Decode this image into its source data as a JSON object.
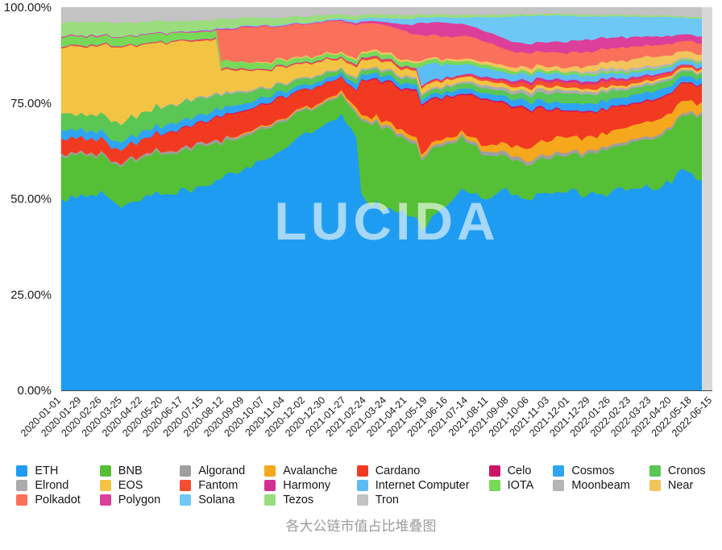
{
  "page": {
    "title": "各大公链市值占比堆叠图",
    "watermark": "LUCIDA"
  },
  "chart_data": {
    "type": "area",
    "stacked": true,
    "normalized_percent": true,
    "title": "各大公链市值占比堆叠图",
    "watermark": "LUCIDA",
    "xlabel": "",
    "ylabel": "",
    "ylim": [
      0,
      100
    ],
    "grid": false,
    "legend_position": "bottom",
    "legend_columns": 8,
    "y_ticks": [
      "100.00%",
      "75.00%",
      "50.00%",
      "25.00%",
      "0.00%"
    ],
    "x": [
      "2020-01-01",
      "2020-01-29",
      "2020-02-26",
      "2020-03-25",
      "2020-04-22",
      "2020-05-20",
      "2020-06-17",
      "2020-07-15",
      "2020-08-12",
      "2020-09-09",
      "2020-10-07",
      "2020-11-04",
      "2020-12-02",
      "2020-12-30",
      "2021-01-27",
      "2021-02-24",
      "2021-03-24",
      "2021-04-21",
      "2021-05-19",
      "2021-06-16",
      "2021-07-14",
      "2021-08-11",
      "2021-09-08",
      "2021-10-06",
      "2021-11-03",
      "2021-12-01",
      "2021-12-29",
      "2022-01-26",
      "2022-02-23",
      "2022-03-23",
      "2022-04-20",
      "2022-05-18",
      "2022-06-15"
    ],
    "series": [
      {
        "name": "ETH",
        "color": "#1E9CF1",
        "values": [
          52,
          56,
          57,
          53,
          56,
          58,
          60,
          61,
          63,
          65,
          66,
          68,
          71,
          74,
          78,
          56,
          52,
          50,
          47,
          52,
          58,
          56,
          60,
          60,
          61,
          63,
          61,
          60,
          61,
          61,
          61,
          63,
          54
        ]
      },
      {
        "name": "BNB",
        "color": "#55C035",
        "values": [
          12,
          11,
          11,
          12,
          12,
          12,
          12,
          12,
          10,
          10,
          9,
          8,
          7,
          6,
          5.5,
          21,
          23,
          22,
          20,
          18,
          15,
          13,
          10,
          11,
          11,
          11,
          12,
          13,
          13,
          14,
          15,
          15,
          17
        ]
      },
      {
        "name": "Algorand",
        "color": "#9E9E9E",
        "values": [
          0.6,
          0.6,
          0.6,
          0.6,
          0.7,
          0.7,
          0.8,
          0.8,
          0.8,
          0.7,
          0.6,
          0.6,
          0.5,
          0.5,
          0.5,
          0.7,
          0.8,
          0.8,
          0.8,
          0.8,
          0.8,
          1,
          1.3,
          1.2,
          1.1,
          1,
          1,
          0.9,
          0.8,
          0.8,
          0.8,
          0.7,
          0.6
        ]
      },
      {
        "name": "Avalanche",
        "color": "#F5A81C",
        "values": [
          0,
          0,
          0,
          0,
          0,
          0,
          0,
          0,
          0,
          0.3,
          0.3,
          0.3,
          0.4,
          0.4,
          0.6,
          1,
          1.2,
          1.2,
          1,
          1,
          1,
          1.5,
          2.5,
          3.5,
          4.5,
          5,
          4.5,
          4,
          4,
          4.5,
          4.5,
          3.5,
          2.5
        ]
      },
      {
        "name": "Cardano",
        "color": "#F23A21",
        "values": [
          4,
          4,
          4,
          4,
          4.5,
          5,
          6,
          6,
          7,
          6.5,
          6,
          6,
          5,
          4.5,
          4,
          10,
          11,
          11,
          13,
          12,
          11,
          13,
          12,
          12,
          10,
          8,
          8,
          7,
          7,
          6,
          6,
          5,
          4.5
        ]
      },
      {
        "name": "Celo",
        "color": "#CC1566",
        "values": [
          0,
          0,
          0,
          0,
          0,
          0.2,
          0.3,
          0.3,
          0.3,
          0.3,
          0.3,
          0.3,
          0.2,
          0.2,
          0.2,
          0.3,
          0.4,
          0.5,
          0.5,
          0.4,
          0.4,
          0.5,
          0.5,
          0.5,
          0.5,
          0.4,
          0.4,
          0.4,
          0.4,
          0.4,
          0.4,
          0.3,
          0.3
        ]
      },
      {
        "name": "Cosmos",
        "color": "#2FA4F5",
        "values": [
          2.5,
          2.2,
          2.2,
          2.2,
          2.2,
          2.2,
          2.2,
          2.2,
          2.2,
          2,
          1.8,
          1.5,
          1.2,
          1.2,
          1.2,
          1.5,
          1.5,
          1.5,
          1.2,
          1.2,
          1.5,
          1.5,
          1.8,
          2.2,
          2.2,
          2,
          2.2,
          2.5,
          2.2,
          2.5,
          2.3,
          1.8,
          1.5
        ]
      },
      {
        "name": "Cronos",
        "color": "#5AC653",
        "values": [
          4.5,
          4.5,
          5,
          5.5,
          5.5,
          5.5,
          5.5,
          5,
          4,
          3.5,
          2.5,
          2,
          1.8,
          1.5,
          1,
          1.2,
          1.2,
          1.5,
          1.2,
          1.2,
          1.5,
          1.5,
          1.5,
          1.8,
          2.5,
          3,
          3,
          2.5,
          2.2,
          2,
          2,
          1.5,
          1.2
        ]
      },
      {
        "name": "Elrond",
        "color": "#ABABAB",
        "values": [
          0,
          0,
          0,
          0,
          0,
          0.2,
          0.3,
          0.4,
          0.5,
          0.5,
          0.4,
          0.4,
          0.4,
          0.4,
          0.4,
          0.5,
          0.6,
          0.6,
          0.5,
          0.5,
          0.6,
          0.8,
          1,
          1,
          1.2,
          1,
          0.9,
          0.8,
          0.7,
          0.7,
          0.7,
          0.5,
          0.4
        ]
      },
      {
        "name": "EOS",
        "color": "#F3C444",
        "values": [
          18,
          19,
          20,
          22,
          20,
          19,
          18,
          16,
          7,
          6,
          5,
          4.5,
          4,
          3.5,
          2.8,
          2.5,
          2.2,
          2,
          1.8,
          1.5,
          1.4,
          1.3,
          1.2,
          1.1,
          1,
          0.9,
          0.8,
          0.8,
          0.7,
          0.7,
          0.6,
          0.5,
          0.5
        ]
      },
      {
        "name": "Fantom",
        "color": "#F54D30",
        "values": [
          0.2,
          0.2,
          0.2,
          0.2,
          0.2,
          0.2,
          0.2,
          0.3,
          0.3,
          0.3,
          0.2,
          0.2,
          0.2,
          0.2,
          0.3,
          0.4,
          0.5,
          0.5,
          0.4,
          0.4,
          0.4,
          0.6,
          0.8,
          1.3,
          1.5,
          1.5,
          1.5,
          1.8,
          1.5,
          1.2,
          1,
          0.6,
          0.4
        ]
      },
      {
        "name": "Harmony",
        "color": "#D43090",
        "values": [
          0.15,
          0.15,
          0.15,
          0.15,
          0.15,
          0.15,
          0.15,
          0.2,
          0.2,
          0.2,
          0.2,
          0.2,
          0.2,
          0.2,
          0.2,
          0.3,
          0.3,
          0.3,
          0.3,
          0.3,
          0.3,
          0.5,
          0.6,
          0.8,
          0.8,
          0.8,
          0.8,
          0.8,
          0.7,
          0.6,
          0.5,
          0.3,
          0.2
        ]
      },
      {
        "name": "Internet Computer",
        "color": "#5BBDF3",
        "values": [
          0,
          0,
          0,
          0,
          0,
          0,
          0,
          0,
          0,
          0,
          0,
          0,
          0,
          0,
          0,
          0,
          0,
          0,
          6,
          4,
          3,
          2.5,
          2.2,
          2,
          1.8,
          1.8,
          1.8,
          1.6,
          1.5,
          1.4,
          1.3,
          1.2,
          1.1
        ]
      },
      {
        "name": "IOTA",
        "color": "#77D958",
        "values": [
          2.5,
          2.5,
          2.5,
          2.5,
          2.5,
          2.5,
          2.3,
          2.2,
          2.2,
          2,
          1.8,
          1.5,
          1.3,
          1.2,
          1,
          1.2,
          1.2,
          1.3,
          1.2,
          1,
          1,
          1,
          1,
          0.9,
          0.9,
          0.8,
          0.7,
          0.6,
          0.6,
          0.5,
          0.5,
          0.4,
          0.35
        ]
      },
      {
        "name": "Moonbeam",
        "color": "#B5B5B5",
        "values": [
          0,
          0,
          0,
          0,
          0,
          0,
          0,
          0,
          0,
          0,
          0,
          0,
          0,
          0,
          0,
          0,
          0,
          0,
          0,
          0,
          0,
          0,
          0,
          0,
          0,
          0,
          0.5,
          1,
          0.8,
          0.8,
          0.7,
          0.4,
          0.3
        ]
      },
      {
        "name": "Near",
        "color": "#F3C45C",
        "values": [
          0,
          0,
          0,
          0,
          0,
          0,
          0,
          0,
          0,
          0,
          0.3,
          0.3,
          0.3,
          0.3,
          0.4,
          0.5,
          0.6,
          0.6,
          0.5,
          0.5,
          0.6,
          0.8,
          1,
          1.2,
          1.3,
          1.3,
          1.5,
          2,
          2.5,
          3,
          2.8,
          2,
          1.5
        ]
      },
      {
        "name": "Polkadot",
        "color": "#F9705B",
        "values": [
          0,
          0,
          0,
          0,
          0,
          0,
          0,
          0,
          9,
          10,
          10,
          9,
          9,
          9,
          9,
          8,
          8,
          8,
          7,
          6.5,
          6.5,
          6,
          5,
          4.5,
          4.5,
          4.5,
          4.5,
          4,
          4,
          3.5,
          3.5,
          3,
          2.8
        ]
      },
      {
        "name": "Polygon",
        "color": "#DC3F9A",
        "values": [
          0.3,
          0.3,
          0.3,
          0.2,
          0.2,
          0.2,
          0.2,
          0.3,
          0.3,
          0.3,
          0.3,
          0.2,
          0.2,
          0.2,
          0.3,
          0.5,
          0.8,
          1.5,
          3.5,
          4,
          3.5,
          3,
          3,
          3,
          3,
          3.5,
          3.8,
          3.3,
          3,
          2.8,
          2.5,
          2,
          1.8
        ]
      },
      {
        "name": "Solana",
        "color": "#6EC8F6",
        "values": [
          0,
          0,
          0,
          0,
          0.1,
          0.1,
          0.1,
          0.2,
          0.2,
          0.2,
          0.2,
          0.2,
          0.2,
          0.2,
          0.5,
          0.8,
          1,
          1.5,
          1.5,
          1.5,
          1.8,
          3.5,
          6.5,
          8,
          8.5,
          8,
          7.5,
          6.5,
          6,
          6,
          6,
          5,
          4.5
        ]
      },
      {
        "name": "Tezos",
        "color": "#9ADC7E",
        "values": [
          3.5,
          3.8,
          4,
          4,
          3.8,
          3.5,
          3.2,
          3,
          2.8,
          2.5,
          2.2,
          2,
          1.8,
          1.5,
          1.2,
          1,
          1,
          1,
          0.9,
          0.8,
          0.8,
          0.7,
          0.7,
          0.6,
          0.6,
          0.6,
          0.6,
          0.5,
          0.5,
          0.5,
          0.5,
          0.4,
          0.35
        ]
      },
      {
        "name": "Tron",
        "color": "#C3C3C3",
        "values": [
          4,
          4,
          4.2,
          4.5,
          4.2,
          4,
          4,
          4,
          3.5,
          3.2,
          3,
          2.8,
          2.5,
          2.2,
          2,
          2,
          2,
          2.2,
          2,
          2,
          2.2,
          2.2,
          2.2,
          2,
          2,
          2,
          2.2,
          2.3,
          2.3,
          2.4,
          2.5,
          2.5,
          2.6
        ]
      }
    ]
  }
}
